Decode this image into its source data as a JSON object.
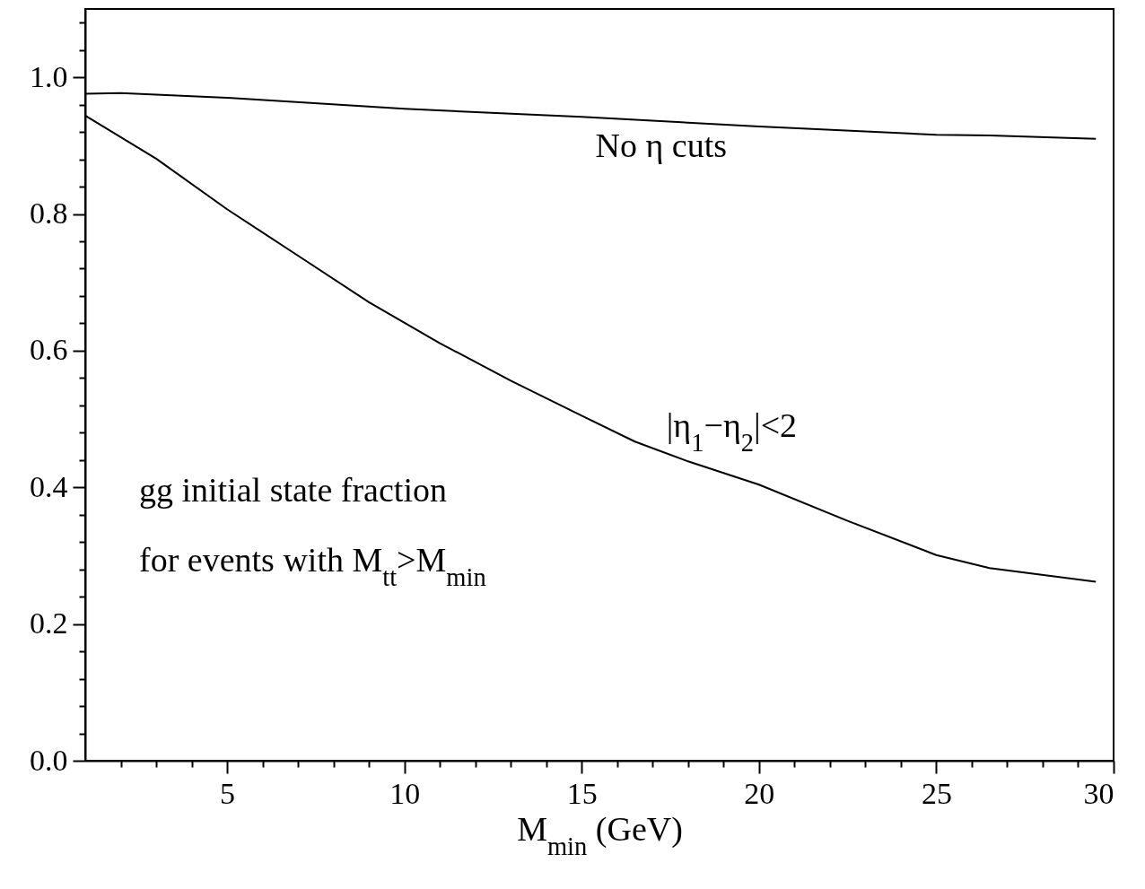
{
  "chart_data": {
    "type": "line",
    "xlabel": "M$_{min}$ (GeV)",
    "x": [
      1,
      2,
      5,
      10,
      15,
      20,
      25,
      26.5,
      29.5
    ],
    "series": [
      {
        "name": "No η cuts",
        "color": "#000000",
        "values": [
          0.976,
          0.977,
          0.97,
          0.954,
          0.942,
          0.928,
          0.916,
          0.915,
          0.91
        ]
      },
      {
        "name": "|η$_{1}$−η$_{2}$|<2",
        "color": "#000000",
        "x": [
          1,
          3,
          5,
          7,
          9,
          11,
          13,
          15,
          16.5,
          18,
          20,
          22.5,
          25,
          26.5,
          29.5
        ],
        "values": [
          0.944,
          0.881,
          0.807,
          0.739,
          0.671,
          0.611,
          0.556,
          0.505,
          0.467,
          0.438,
          0.404,
          0.351,
          0.301,
          0.282,
          0.262
        ]
      }
    ],
    "annotations": [
      "gg initial state fraction",
      "for events with M$_{tt}$>M$_{min}$"
    ],
    "xlim": [
      1,
      30
    ],
    "ylim": [
      0,
      1.1
    ],
    "xticks": [
      {
        "value": 2,
        "label": null
      },
      {
        "value": 3,
        "label": null
      },
      {
        "value": 4,
        "label": null
      },
      5,
      {
        "value": 6,
        "label": null
      },
      {
        "value": 7,
        "label": null
      },
      {
        "value": 8,
        "label": null
      },
      {
        "value": 9,
        "label": null
      },
      10,
      {
        "value": 11,
        "label": null
      },
      {
        "value": 12,
        "label": null
      },
      {
        "value": 13,
        "label": null
      },
      {
        "value": 14,
        "label": null
      },
      15,
      {
        "value": 16,
        "label": null
      },
      {
        "value": 17,
        "label": null
      },
      {
        "value": 18,
        "label": null
      },
      {
        "value": 19,
        "label": null
      },
      20,
      {
        "value": 21,
        "label": null
      },
      {
        "value": 22,
        "label": null
      },
      {
        "value": 23,
        "label": null
      },
      {
        "value": 24,
        "label": null
      },
      25,
      {
        "value": 26,
        "label": null
      },
      {
        "value": 27,
        "label": null
      },
      {
        "value": 28,
        "label": null
      },
      {
        "value": 29,
        "label": null
      },
      30
    ],
    "yticks": [
      {
        "value": 0,
        "label": "0.0"
      },
      {
        "value": 0.04,
        "label": null
      },
      {
        "value": 0.08,
        "label": null
      },
      {
        "value": 0.12,
        "label": null
      },
      {
        "value": 0.16,
        "label": null
      },
      0.2,
      {
        "value": 0.24,
        "label": null
      },
      {
        "value": 0.28,
        "label": null
      },
      {
        "value": 0.32,
        "label": null
      },
      {
        "value": 0.36,
        "label": null
      },
      0.4,
      {
        "value": 0.44,
        "label": null
      },
      {
        "value": 0.48,
        "label": null
      },
      {
        "value": 0.52,
        "label": null
      },
      {
        "value": 0.56,
        "label": null
      },
      0.6,
      {
        "value": 0.64,
        "label": null
      },
      {
        "value": 0.68,
        "label": null
      },
      {
        "value": 0.72,
        "label": null
      },
      {
        "value": 0.76,
        "label": null
      },
      0.8,
      {
        "value": 0.84,
        "label": null
      },
      {
        "value": 0.88,
        "label": null
      },
      {
        "value": 0.92,
        "label": null
      },
      {
        "value": 0.96,
        "label": null
      },
      {
        "value": 1,
        "label": "1.0"
      },
      {
        "value": 1.04,
        "label": null
      },
      {
        "value": 1.08,
        "label": null
      }
    ],
    "grid": false,
    "marker": "none",
    "line_style": "solid"
  }
}
